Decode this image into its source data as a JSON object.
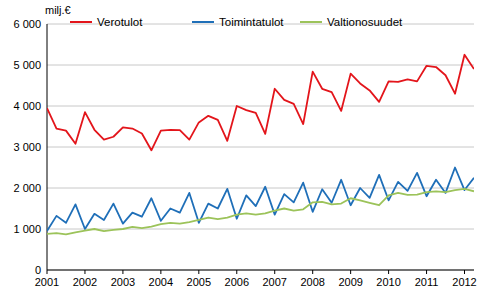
{
  "chart_data": {
    "type": "line",
    "y_label": "milj.€",
    "categories": [
      "2001",
      null,
      null,
      null,
      "2002",
      null,
      null,
      null,
      "2003",
      null,
      null,
      null,
      "2004",
      null,
      null,
      null,
      "2005",
      null,
      null,
      null,
      "2006",
      null,
      null,
      null,
      "2007",
      null,
      null,
      null,
      "2008",
      null,
      null,
      null,
      "2009",
      null,
      null,
      null,
      "2010",
      null,
      null,
      null,
      "2011",
      null,
      null,
      null,
      "2012",
      null
    ],
    "series": [
      {
        "name": "Verotulot",
        "color": "#e3151b",
        "values": [
          3950,
          3450,
          3400,
          3080,
          3850,
          3420,
          3180,
          3250,
          3480,
          3450,
          3330,
          2920,
          3400,
          3420,
          3410,
          3180,
          3600,
          3760,
          3660,
          3150,
          4000,
          3900,
          3830,
          3320,
          4420,
          4150,
          4050,
          3560,
          4840,
          4420,
          4340,
          3880,
          4790,
          4550,
          4380,
          4100,
          4600,
          4590,
          4650,
          4600,
          4980,
          4950,
          4750,
          4300,
          5250,
          4900
        ]
      },
      {
        "name": "Toimintatulot",
        "color": "#1f6fb8",
        "values": [
          950,
          1320,
          1150,
          1600,
          1000,
          1370,
          1220,
          1620,
          1130,
          1400,
          1300,
          1750,
          1200,
          1500,
          1400,
          1880,
          1150,
          1620,
          1500,
          1980,
          1250,
          1820,
          1560,
          2030,
          1350,
          1850,
          1650,
          2130,
          1420,
          1970,
          1640,
          2200,
          1580,
          2000,
          1760,
          2320,
          1700,
          2150,
          1930,
          2370,
          1800,
          2200,
          1880,
          2500,
          1950,
          2250
        ]
      },
      {
        "name": "Valtionosuudet",
        "color": "#9cc35a",
        "values": [
          880,
          900,
          870,
          920,
          960,
          1000,
          950,
          980,
          1000,
          1050,
          1020,
          1060,
          1120,
          1150,
          1130,
          1170,
          1220,
          1280,
          1240,
          1280,
          1350,
          1380,
          1350,
          1380,
          1450,
          1500,
          1450,
          1480,
          1650,
          1660,
          1600,
          1620,
          1750,
          1700,
          1640,
          1580,
          1820,
          1880,
          1830,
          1840,
          1900,
          1920,
          1900,
          1950,
          1980,
          1920
        ]
      }
    ],
    "ylim": [
      0,
      6000
    ],
    "yticks": [
      0,
      {
        "value": 1000,
        "label": "1 000"
      },
      {
        "value": 2000,
        "label": "2 000"
      },
      {
        "value": 3000,
        "label": "3 000"
      },
      {
        "value": 4000,
        "label": "4 000"
      },
      {
        "value": 5000,
        "label": "5 000"
      },
      {
        "value": 6000,
        "label": "6 000"
      }
    ],
    "grid": true,
    "legend": "top-left"
  }
}
